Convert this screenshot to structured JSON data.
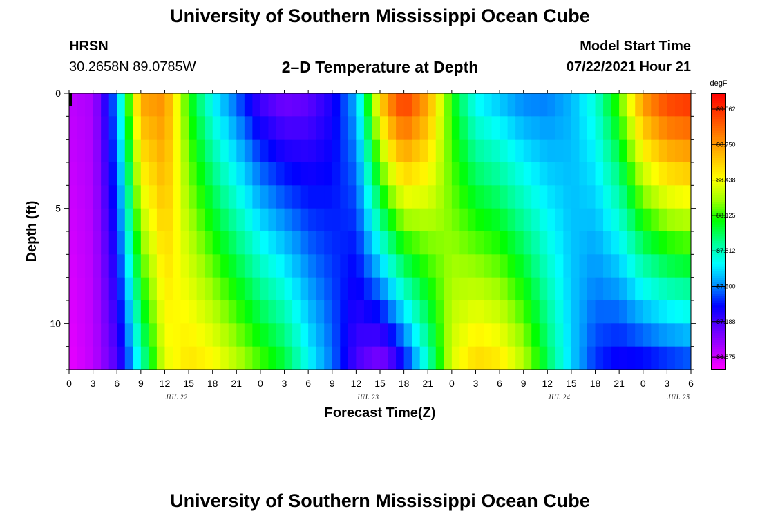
{
  "header": {
    "title": "University of Southern Mississippi Ocean Cube",
    "station": "HRSN",
    "coords": "30.2658N  89.0785W",
    "subtitle": "2–D Temperature at Depth",
    "model_label": "Model Start Time",
    "model_time": "07/22/2021 Hour 21"
  },
  "footer": {
    "title": "University of Southern Mississippi Ocean Cube"
  },
  "chart_data": {
    "type": "heatmap",
    "xlabel": "Forecast Time(Z)",
    "ylabel": "Depth (ft)",
    "x_ticks": [
      "0",
      "3",
      "6",
      "9",
      "12",
      "15",
      "18",
      "21",
      "0",
      "3",
      "6",
      "9",
      "12",
      "15",
      "18",
      "21",
      "0",
      "3",
      "6",
      "9",
      "12",
      "15",
      "18",
      "21",
      "0",
      "3",
      "6"
    ],
    "x_dates": [
      {
        "label": "JUL 22",
        "hour_index": 4.5
      },
      {
        "label": "JUL 23",
        "hour_index": 12.5
      },
      {
        "label": "JUL 24",
        "hour_index": 20.5
      },
      {
        "label": "JUL 25",
        "hour_index": 25.5
      }
    ],
    "y_ticks": [
      "0",
      "5",
      "10"
    ],
    "y_tick_values": [
      0,
      5,
      10
    ],
    "ylim": [
      0,
      12
    ],
    "colorbar": {
      "unit": "degF",
      "labels": [
        "89.062",
        "88.750",
        "88.438",
        "88.125",
        "87.812",
        "87.500",
        "87.188",
        "86.875"
      ],
      "vmin": 86.8,
      "vmax": 89.2,
      "colors": [
        "#ff00ff",
        "#b000ff",
        "#6000ff",
        "#0000ff",
        "#0090ff",
        "#00ffff",
        "#00ff90",
        "#00ff00",
        "#a0ff00",
        "#ffff00",
        "#ffc000",
        "#ff8000",
        "#ff4000",
        "#ff0000"
      ]
    },
    "depth_levels_ft": [
      0,
      1,
      2,
      3,
      4,
      5,
      6,
      7,
      8,
      9,
      10,
      11,
      12
    ],
    "z_keyframes_hours": [
      0,
      3,
      6,
      7,
      9,
      12,
      15,
      18,
      21,
      24,
      27,
      30,
      33,
      36,
      39,
      40,
      42,
      45,
      48,
      51,
      54,
      57,
      60,
      63,
      66,
      69,
      72,
      75,
      78
    ],
    "z_keyframes_surface": [
      86.95,
      87.0,
      87.55,
      88.0,
      88.75,
      88.8,
      88.1,
      87.7,
      87.45,
      87.2,
      87.1,
      87.15,
      87.3,
      87.6,
      88.6,
      88.85,
      89.1,
      88.75,
      88.1,
      87.7,
      87.6,
      87.5,
      87.5,
      87.6,
      87.8,
      88.2,
      88.8,
      89.05,
      89.1
    ],
    "z_keyframes_bottom": [
      86.85,
      86.95,
      87.2,
      87.35,
      87.8,
      88.4,
      88.55,
      88.5,
      88.35,
      88.2,
      88.05,
      87.75,
      87.5,
      87.2,
      87.05,
      87.1,
      87.3,
      87.8,
      88.4,
      88.6,
      88.55,
      88.35,
      88.0,
      87.65,
      87.4,
      87.3,
      87.3,
      87.35,
      87.4
    ],
    "grid": false
  }
}
